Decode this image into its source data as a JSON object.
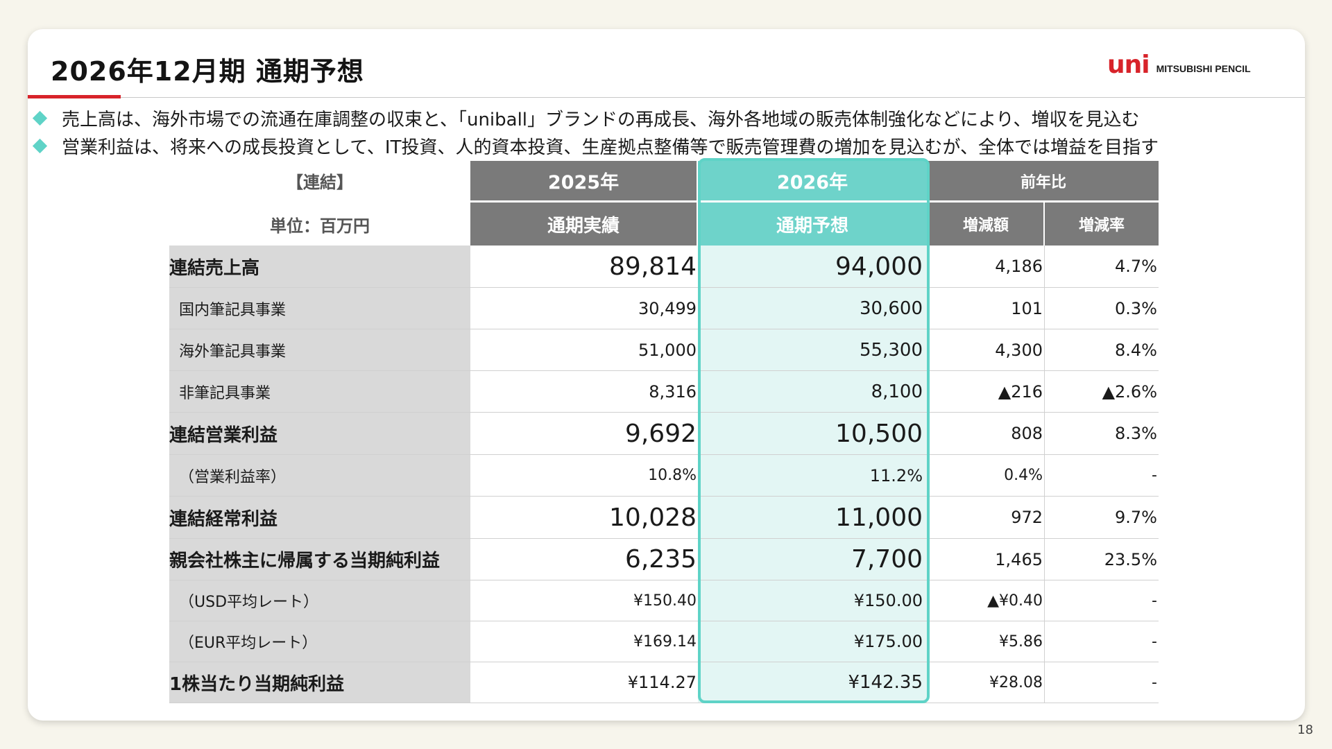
{
  "slide": {
    "title": "2026年12月期 通期予想",
    "logo_mark": "uni",
    "logo_text": "MITSUBISHI PENCIL",
    "page_number": "18",
    "bullets": [
      "売上高は、海外市場での流通在庫調整の収束と、「uniball」ブランドの再成長、海外各地域の販売体制強化などにより、増収を見込む",
      "営業利益は、将来への成長投資として、IT投資、人的資本投資、生産拠点整備等で販売管理費の増加を見込むが、全体では増益を目指す"
    ]
  },
  "table": {
    "corner_top": "【連結】",
    "corner_bottom": "単位：百万円",
    "col_2025": "2025年",
    "col_2025_sub": "通期実績",
    "col_2026": "2026年",
    "col_2026_sub": "通期予想",
    "col_yoy": "前年比",
    "col_diff": "増減額",
    "col_rate": "増減率",
    "rows": [
      {
        "label": "連結売上高",
        "actual": "89,814",
        "forecast": "94,000",
        "diff": "4,186",
        "rate": "4.7%"
      },
      {
        "label": "国内筆記具事業",
        "actual": "30,499",
        "forecast": "30,600",
        "diff": "101",
        "rate": "0.3%"
      },
      {
        "label": "海外筆記具事業",
        "actual": "51,000",
        "forecast": "55,300",
        "diff": "4,300",
        "rate": "8.4%"
      },
      {
        "label": "非筆記具事業",
        "actual": "8,316",
        "forecast": "8,100",
        "diff": "▲216",
        "rate": "▲2.6%"
      },
      {
        "label": "連結営業利益",
        "actual": "9,692",
        "forecast": "10,500",
        "diff": "808",
        "rate": "8.3%"
      },
      {
        "label": "（営業利益率）",
        "actual": "10.8%",
        "forecast": "11.2%",
        "diff": "0.4%",
        "rate": "-"
      },
      {
        "label": "連結経常利益",
        "actual": "10,028",
        "forecast": "11,000",
        "diff": "972",
        "rate": "9.7%"
      },
      {
        "label": "親会社株主に帰属する当期純利益",
        "actual": "6,235",
        "forecast": "7,700",
        "diff": "1,465",
        "rate": "23.5%"
      },
      {
        "label": "（USD平均レート）",
        "actual": "¥150.40",
        "forecast": "¥150.00",
        "diff": "▲¥0.40",
        "rate": "-"
      },
      {
        "label": "（EUR平均レート）",
        "actual": "¥169.14",
        "forecast": "¥175.00",
        "diff": "¥5.86",
        "rate": "-"
      },
      {
        "label": "1株当たり当期純利益",
        "actual": "¥114.27",
        "forecast": "¥142.35",
        "diff": "¥28.08",
        "rate": "-"
      }
    ]
  },
  "colors": {
    "accent_red": "#d8232a",
    "teal": "#6ed3ca",
    "teal_light": "#e3f6f4",
    "header_gray": "#7a7a7a",
    "label_gray": "#d9d9d9"
  }
}
